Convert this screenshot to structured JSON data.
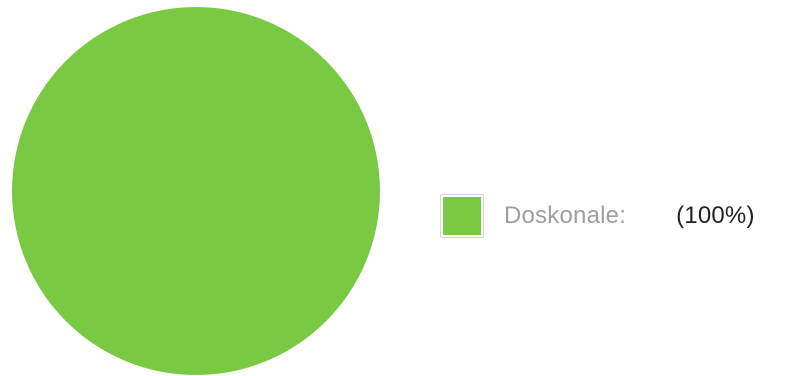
{
  "chart_data": {
    "type": "pie",
    "title": "",
    "slices": [
      {
        "label": "Doskonale:",
        "value": 100,
        "percent_label": "(100%)",
        "color": "#7ac943"
      }
    ],
    "legend_position": "right"
  }
}
